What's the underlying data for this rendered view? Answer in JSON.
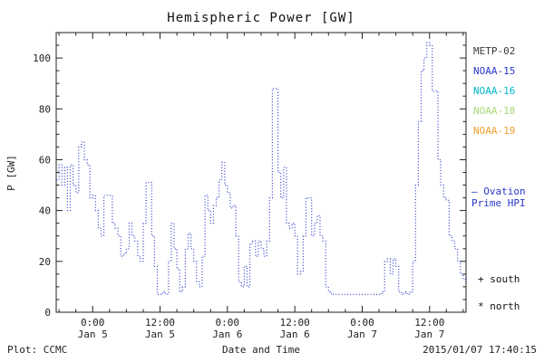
{
  "title": "Hemispheric Power [GW]",
  "footer": {
    "left": "Plot: CCMC",
    "center": "Date and Time",
    "right": "2015/01/07 17:40:15"
  },
  "legend": {
    "satellites": [
      {
        "label": "METP-02",
        "color": "#3a3a3a"
      },
      {
        "label": "NOAA-15",
        "color": "#2838c8"
      },
      {
        "label": "NOAA-16",
        "color": "#00b8cc"
      },
      {
        "label": "NOAA-18",
        "color": "#a8d878"
      },
      {
        "label": "NOAA-19",
        "color": "#f0a030"
      }
    ],
    "ovation": {
      "line1": "— Ovation",
      "line2": "Prime HPI",
      "color": "#2838c8"
    },
    "markers": [
      {
        "symbol": "+",
        "label": "south"
      },
      {
        "symbol": "*",
        "label": "north"
      }
    ]
  },
  "chart_data": {
    "type": "line",
    "style": "dotted-step",
    "title": "Hemispheric Power [GW]",
    "xlabel": "Date and Time",
    "ylabel": "P [GW]",
    "ylim": [
      0,
      110
    ],
    "yticks": [
      0,
      20,
      40,
      60,
      80,
      100
    ],
    "xlim": [
      -6.5,
      66.5
    ],
    "x_unit": "hours relative to 2015 Jan 5 00:00",
    "xticks": [
      {
        "pos": 0,
        "time": "0:00",
        "date": "Jan 5"
      },
      {
        "pos": 12,
        "time": "12:00",
        "date": "Jan 5"
      },
      {
        "pos": 24,
        "time": "0:00",
        "date": "Jan 6"
      },
      {
        "pos": 36,
        "time": "12:00",
        "date": "Jan 6"
      },
      {
        "pos": 48,
        "time": "0:00",
        "date": "Jan 7"
      },
      {
        "pos": 60,
        "time": "12:00",
        "date": "Jan 7"
      }
    ],
    "line_color": "#2838c8",
    "series": [
      {
        "name": "Ovation Prime HPI",
        "points": [
          [
            -6.5,
            52
          ],
          [
            -6,
            58
          ],
          [
            -5.5,
            50
          ],
          [
            -5,
            57
          ],
          [
            -4.5,
            40
          ],
          [
            -4,
            58
          ],
          [
            -3.5,
            50
          ],
          [
            -3,
            47
          ],
          [
            -2.5,
            65
          ],
          [
            -2,
            67
          ],
          [
            -1.5,
            60
          ],
          [
            -1,
            58
          ],
          [
            -0.5,
            45
          ],
          [
            0,
            46
          ],
          [
            0.5,
            40
          ],
          [
            1,
            33
          ],
          [
            1.5,
            30
          ],
          [
            2,
            46
          ],
          [
            2.5,
            46
          ],
          [
            3,
            46
          ],
          [
            3.5,
            35
          ],
          [
            4,
            33
          ],
          [
            4.5,
            30
          ],
          [
            5,
            22
          ],
          [
            5.5,
            23
          ],
          [
            6,
            25
          ],
          [
            6.5,
            35
          ],
          [
            7,
            30
          ],
          [
            7.5,
            28
          ],
          [
            8,
            22
          ],
          [
            8.5,
            20
          ],
          [
            9,
            35
          ],
          [
            9.5,
            51
          ],
          [
            10,
            51
          ],
          [
            10.5,
            30
          ],
          [
            11,
            18
          ],
          [
            11.5,
            7
          ],
          [
            12,
            7
          ],
          [
            12.5,
            8
          ],
          [
            13,
            7
          ],
          [
            13.5,
            20
          ],
          [
            14,
            35
          ],
          [
            14.5,
            25
          ],
          [
            15,
            17
          ],
          [
            15.5,
            8
          ],
          [
            16,
            10
          ],
          [
            16.5,
            25
          ],
          [
            17,
            31
          ],
          [
            17.5,
            25
          ],
          [
            18,
            20
          ],
          [
            18.5,
            12
          ],
          [
            19,
            10
          ],
          [
            19.5,
            22
          ],
          [
            20,
            46
          ],
          [
            20.5,
            40
          ],
          [
            21,
            35
          ],
          [
            21.5,
            42
          ],
          [
            22,
            45
          ],
          [
            22.5,
            52
          ],
          [
            23,
            59
          ],
          [
            23.5,
            50
          ],
          [
            24,
            47
          ],
          [
            24.5,
            41
          ],
          [
            25,
            42
          ],
          [
            25.5,
            30
          ],
          [
            26,
            12
          ],
          [
            26.5,
            10
          ],
          [
            27,
            18
          ],
          [
            27.5,
            10
          ],
          [
            28,
            27
          ],
          [
            28.5,
            28
          ],
          [
            29,
            22
          ],
          [
            29.5,
            28
          ],
          [
            30,
            25
          ],
          [
            30.5,
            22
          ],
          [
            31,
            28
          ],
          [
            31.5,
            45
          ],
          [
            32,
            88
          ],
          [
            32.5,
            88
          ],
          [
            33,
            55
          ],
          [
            33.5,
            45
          ],
          [
            34,
            57
          ],
          [
            34.5,
            35
          ],
          [
            35,
            33
          ],
          [
            35.5,
            35
          ],
          [
            36,
            30
          ],
          [
            36.5,
            15
          ],
          [
            37,
            16
          ],
          [
            37.5,
            30
          ],
          [
            38,
            45
          ],
          [
            38.5,
            45
          ],
          [
            39,
            30
          ],
          [
            39.5,
            35
          ],
          [
            40,
            38
          ],
          [
            40.5,
            30
          ],
          [
            41,
            28
          ],
          [
            41.5,
            10
          ],
          [
            42,
            8
          ],
          [
            42.5,
            7
          ],
          [
            43,
            7
          ],
          [
            44,
            7
          ],
          [
            45,
            7
          ],
          [
            46,
            7
          ],
          [
            47,
            7
          ],
          [
            48,
            7
          ],
          [
            49,
            7
          ],
          [
            50,
            7
          ],
          [
            51,
            7
          ],
          [
            51.5,
            8
          ],
          [
            52,
            20
          ],
          [
            52.5,
            21
          ],
          [
            53,
            15
          ],
          [
            53.5,
            21
          ],
          [
            54,
            18
          ],
          [
            54.5,
            8
          ],
          [
            55,
            7
          ],
          [
            55.5,
            8
          ],
          [
            56,
            7
          ],
          [
            56.5,
            8
          ],
          [
            57,
            20
          ],
          [
            57.5,
            50
          ],
          [
            58,
            75
          ],
          [
            58.5,
            95
          ],
          [
            59,
            100
          ],
          [
            59.5,
            106
          ],
          [
            60,
            105
          ],
          [
            60.5,
            87
          ],
          [
            61,
            87
          ],
          [
            61.5,
            60
          ],
          [
            62,
            50
          ],
          [
            62.5,
            45
          ],
          [
            63,
            44
          ],
          [
            63.5,
            30
          ],
          [
            64,
            28
          ],
          [
            64.5,
            25
          ],
          [
            65,
            20
          ],
          [
            65.5,
            15
          ],
          [
            66,
            13
          ],
          [
            66.5,
            12
          ]
        ]
      }
    ]
  }
}
